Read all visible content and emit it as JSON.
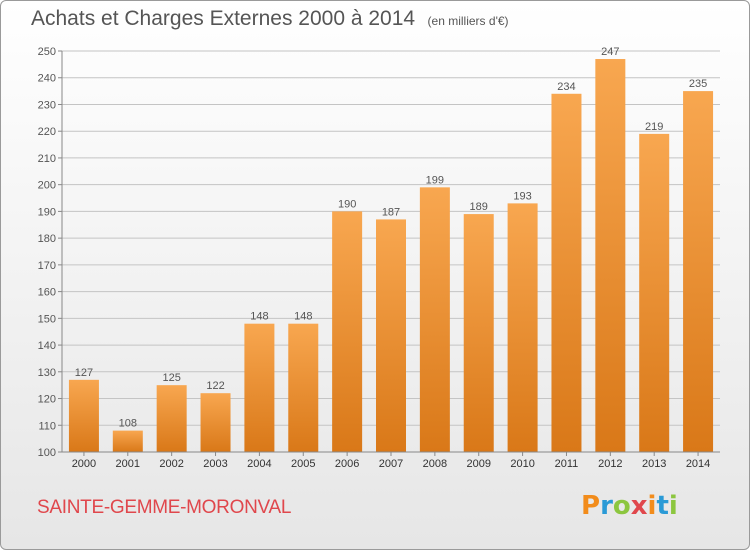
{
  "header": {
    "title": "Achats et Charges Externes 2000 à 2014",
    "unit": "(en milliers d'€)"
  },
  "footer": {
    "commune": "SAINTE-GEMME-MORONVAL",
    "brand": "Proxiti",
    "brand_letters": [
      {
        "char": "P",
        "color": "#f28c1b"
      },
      {
        "char": "r",
        "color": "#2a9ad6"
      },
      {
        "char": "o",
        "color": "#8cc63f"
      },
      {
        "char": "x",
        "color": "#e0474c"
      },
      {
        "char": "i",
        "color": "#f28c1b"
      },
      {
        "char": "t",
        "color": "#2a9ad6"
      },
      {
        "char": "i",
        "color": "#8cc63f"
      }
    ]
  },
  "colors": {
    "bar_light": "#f8a750",
    "bar_dark": "#d97818",
    "text": "#555555",
    "grid": "#c4c4c4",
    "commune": "#e0474c"
  },
  "chart_data": {
    "type": "bar",
    "title": "Achats et Charges Externes 2000 à 2014",
    "subtitle": "(en milliers d'€)",
    "xlabel": "",
    "ylabel": "",
    "categories": [
      "2000",
      "2001",
      "2002",
      "2003",
      "2004",
      "2005",
      "2006",
      "2007",
      "2008",
      "2009",
      "2010",
      "2011",
      "2012",
      "2013",
      "2014"
    ],
    "values": [
      127,
      108,
      125,
      122,
      148,
      148,
      190,
      187,
      199,
      189,
      193,
      234,
      247,
      219,
      235
    ],
    "ylim": [
      100,
      250
    ],
    "yticks": [
      100,
      110,
      120,
      130,
      140,
      150,
      160,
      170,
      180,
      190,
      200,
      210,
      220,
      230,
      240,
      250
    ],
    "grid": true,
    "legend": "none"
  }
}
